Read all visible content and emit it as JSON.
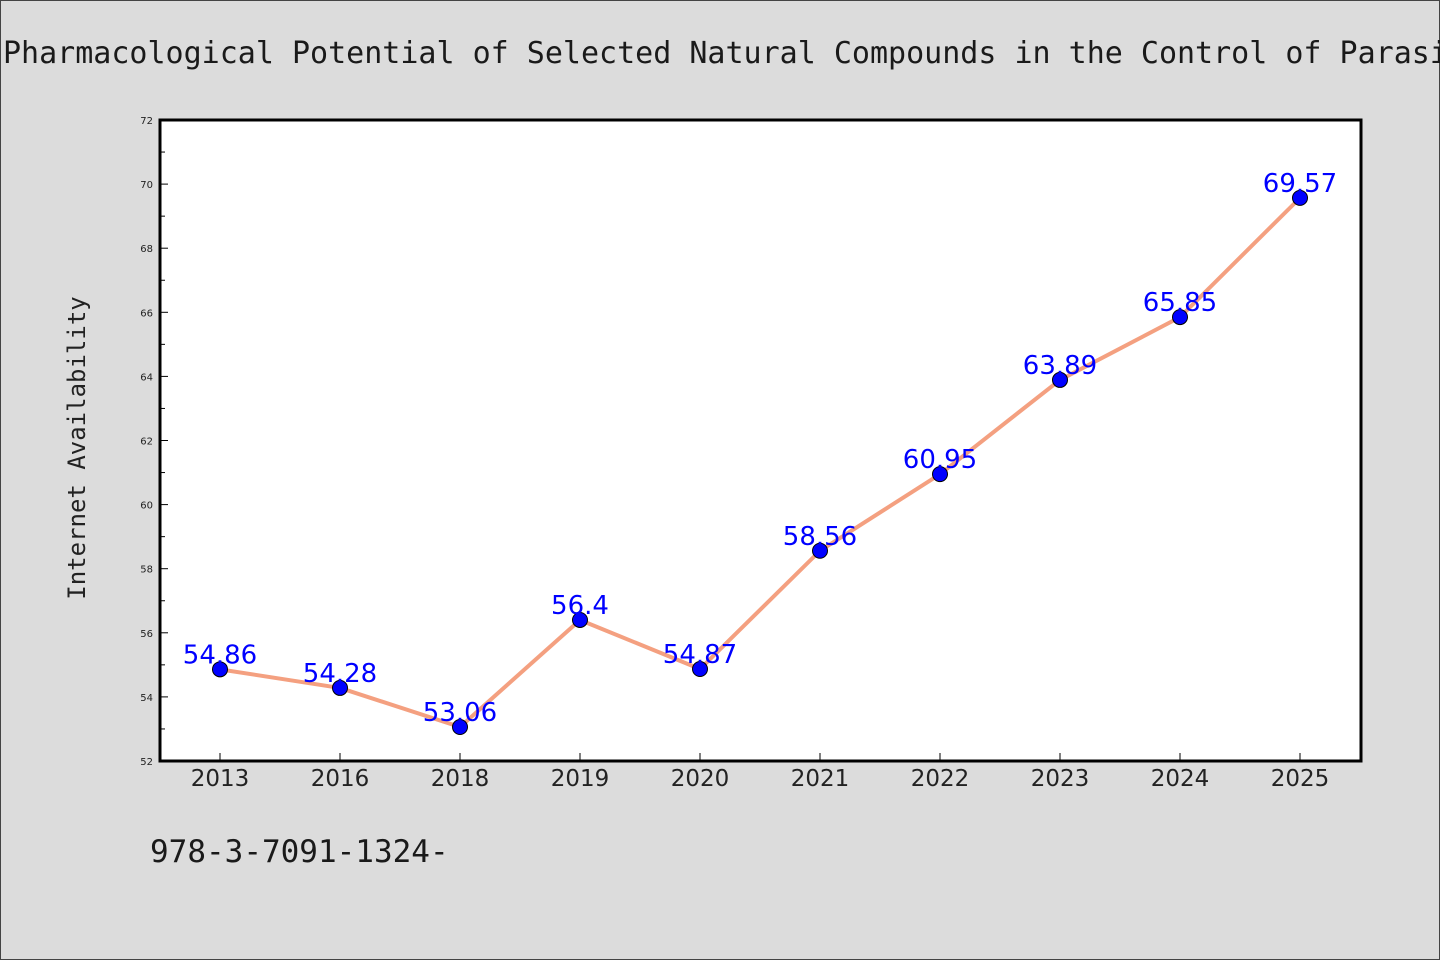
{
  "colors": {
    "background": "#dcdcdc",
    "plot_background": "#ffffff",
    "line": "#f4a080",
    "marker": "#0000ff",
    "data_label": "#0000ff",
    "text": "#222222"
  },
  "footnote": "978-3-7091-1324-",
  "chart_data": {
    "type": "line",
    "title": "Pharmacological Potential of Selected Natural Compounds in the Control of Parasi",
    "xlabel": "",
    "ylabel": "Internet Availability",
    "ylim": [
      52,
      72
    ],
    "yticks": [
      "52",
      "54",
      "56",
      "58",
      "60",
      "62",
      "64",
      "66",
      "68",
      "70",
      "72"
    ],
    "grid": false,
    "categories": [
      "2013",
      "2016",
      "2018",
      "2019",
      "2020",
      "2021",
      "2022",
      "2023",
      "2024",
      "2025"
    ],
    "series": [
      {
        "values": [
          54.86,
          54.28,
          53.06,
          56.4,
          54.87,
          58.56,
          60.95,
          63.89,
          65.85,
          69.57
        ],
        "labels": [
          "54.86",
          "54.28",
          "53.06",
          "56.4",
          "54.87",
          "58.56",
          "60.95",
          "63.89",
          "65.85",
          "69.57"
        ]
      }
    ]
  }
}
